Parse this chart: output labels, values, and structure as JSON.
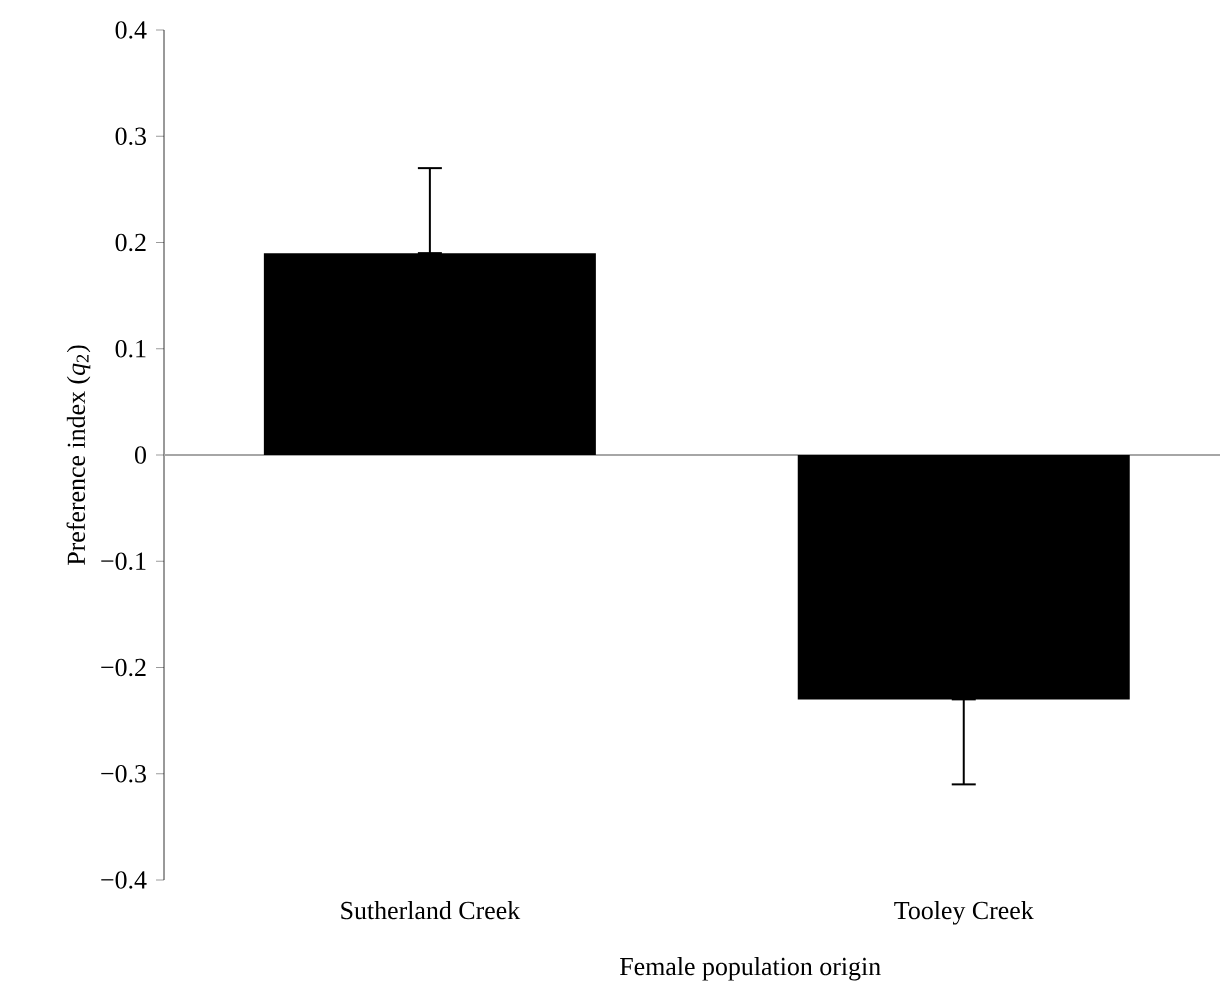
{
  "chart_data": {
    "type": "bar",
    "xlabel": "Female population origin",
    "ylabel": "Preference index (*q*$_{2}$)",
    "categories": [
      "Sutherland Creek",
      "Tooley Creek"
    ],
    "values": [
      0.19,
      -0.23
    ],
    "errors": [
      [
        0.19,
        0.27
      ],
      [
        -0.31,
        -0.23
      ]
    ],
    "color": "#000000",
    "ylim": [
      -0.4,
      0.4
    ],
    "yticks": [
      {
        "value": -0.4,
        "label": "−0.4"
      },
      {
        "value": -0.3,
        "label": "−0.3"
      },
      {
        "value": -0.2,
        "label": "−0.2"
      },
      {
        "value": -0.1,
        "label": "−0.1"
      },
      0,
      0.1,
      0.2,
      0.3,
      0.4
    ],
    "orientation": "vertical"
  }
}
